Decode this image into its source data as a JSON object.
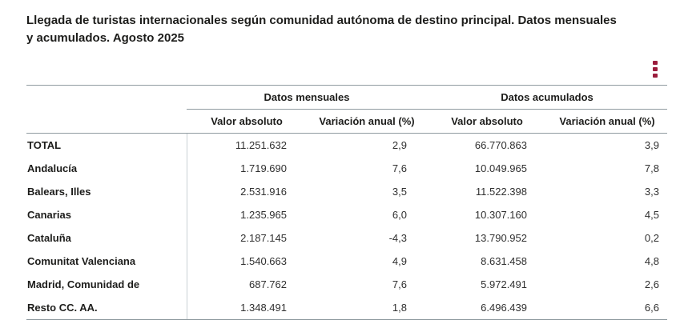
{
  "title": "Llegada de turistas internacionales según comunidad autónoma de destino principal. Datos mensuales y acumulados. Agosto 2025",
  "toolbar": {
    "menu_icon": "kebab-menu-icon"
  },
  "colors": {
    "accent": "#9B1D3D",
    "grid_line": "#8F9AA0",
    "column_divider": "#C9D1D4"
  },
  "table": {
    "column_groups": [
      {
        "label": "Datos mensuales",
        "columns": [
          "Valor absoluto",
          "Variación anual (%)"
        ]
      },
      {
        "label": "Datos acumulados",
        "columns": [
          "Valor absoluto",
          "Variación anual (%)"
        ]
      }
    ],
    "rows": [
      {
        "label": "TOTAL",
        "values": [
          "11.251.632",
          "2,9",
          "66.770.863",
          "3,9"
        ]
      },
      {
        "label": "Andalucía",
        "values": [
          "1.719.690",
          "7,6",
          "10.049.965",
          "7,8"
        ]
      },
      {
        "label": "Balears, Illes",
        "values": [
          "2.531.916",
          "3,5",
          "11.522.398",
          "3,3"
        ]
      },
      {
        "label": "Canarias",
        "values": [
          "1.235.965",
          "6,0",
          "10.307.160",
          "4,5"
        ]
      },
      {
        "label": "Cataluña",
        "values": [
          "2.187.145",
          "-4,3",
          "13.790.952",
          "0,2"
        ]
      },
      {
        "label": "Comunitat Valenciana",
        "values": [
          "1.540.663",
          "4,9",
          "8.631.458",
          "4,8"
        ]
      },
      {
        "label": "Madrid, Comunidad de",
        "values": [
          "687.762",
          "7,6",
          "5.972.491",
          "2,6"
        ]
      },
      {
        "label": "Resto CC. AA.",
        "values": [
          "1.348.491",
          "1,8",
          "6.496.439",
          "6,6"
        ]
      }
    ]
  }
}
